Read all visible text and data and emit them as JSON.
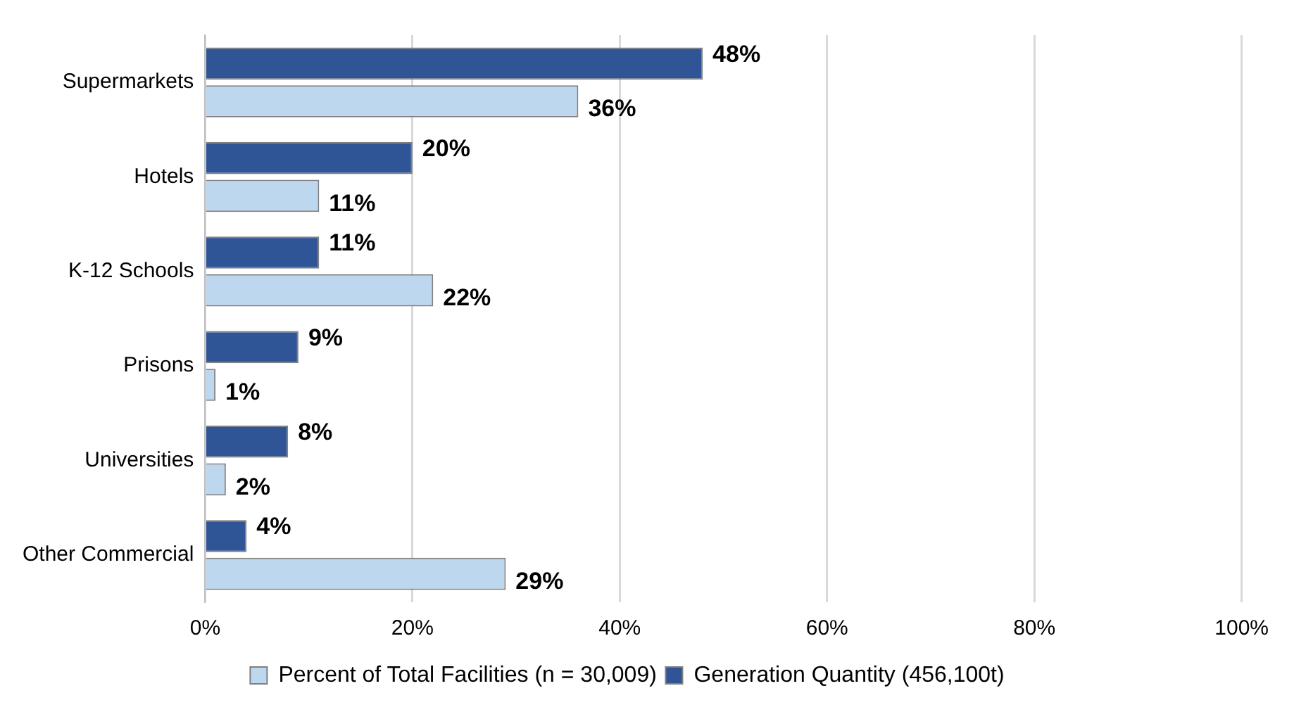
{
  "chart_data": {
    "type": "bar",
    "orientation": "horizontal",
    "categories": [
      "Supermarkets",
      "Hotels",
      "K-12 Schools",
      "Prisons",
      "Universities",
      "Other Commercial"
    ],
    "series": [
      {
        "name": "Percent of Total Facilities (n = 30,009)",
        "color": "#bdd7ee",
        "values": [
          36,
          11,
          22,
          1,
          2,
          29
        ],
        "value_labels": [
          "36%",
          "11%",
          "22%",
          "1%",
          "2%",
          "29%"
        ]
      },
      {
        "name": "Generation Quantity (456,100t)",
        "color": "#2f5597",
        "values": [
          48,
          20,
          11,
          9,
          8,
          4
        ],
        "value_labels": [
          "48%",
          "20%",
          "11%",
          "9%",
          "8%",
          "4%"
        ]
      }
    ],
    "xlim": [
      0,
      100
    ],
    "xticks": [
      {
        "value": 0,
        "label": "0%"
      },
      {
        "value": 20,
        "label": "20%"
      },
      {
        "value": 40,
        "label": "40%"
      },
      {
        "value": 60,
        "label": "60%"
      },
      {
        "value": 80,
        "label": "80%"
      },
      {
        "value": 100,
        "label": "100%"
      }
    ],
    "grid": "x",
    "legend": "bottom"
  }
}
